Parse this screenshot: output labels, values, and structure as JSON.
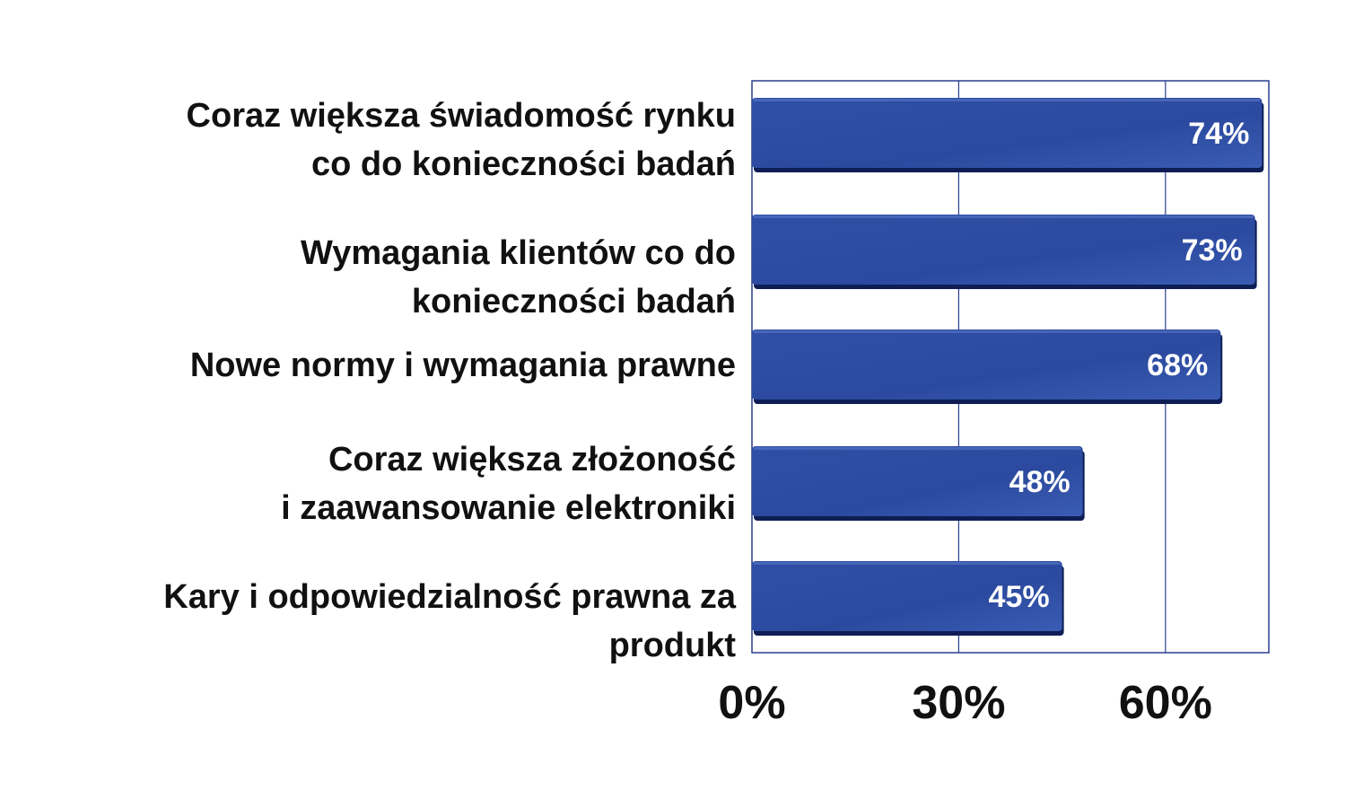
{
  "chart_data": {
    "type": "bar",
    "orientation": "horizontal",
    "categories": [
      [
        "Coraz większa świadomość rynku",
        "co do konieczności badań"
      ],
      [
        "Wymagania klientów co do",
        "konieczności badań"
      ],
      [
        "Nowe normy i wymagania prawne"
      ],
      [
        "Coraz większa złożoność",
        "i zaawansowanie elektroniki"
      ],
      [
        "Kary i odpowiedzialność prawna za",
        "produkt"
      ]
    ],
    "values": [
      74,
      73,
      68,
      48,
      45
    ],
    "data_labels": [
      "74%",
      "73%",
      "68%",
      "48%",
      "45%"
    ],
    "x_ticks": [
      "0%",
      "30%",
      "60%"
    ],
    "x_tick_values": [
      0,
      30,
      60
    ],
    "xlim": [
      0,
      75
    ],
    "grid": "vertical",
    "legend": "none",
    "title": "",
    "xlabel": "",
    "ylabel": "",
    "colors": {
      "bar": "#2a4a9e",
      "bar_light": "#3a5bb0",
      "bar_dark": "#1a3480",
      "grid": "#2a3f8f",
      "label": "#111111",
      "data_label": "#ffffff"
    }
  }
}
